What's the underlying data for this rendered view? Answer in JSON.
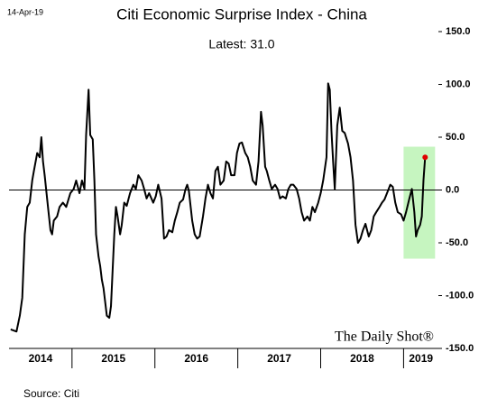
{
  "chart_data": {
    "type": "line",
    "title": "Citi Economic Surprise Index - China",
    "subtitle": "Latest:  31.0",
    "date": "14-Apr-19",
    "source": "Source: Citi",
    "watermark": "The Daily Shot®",
    "color": "#000000",
    "marker_color": "#e00000",
    "highlight": {
      "xlim": [
        2019.0,
        2019.38
      ],
      "ylim": [
        -65,
        41
      ],
      "color": "#c6f5c0"
    },
    "xlim": [
      2014.24,
      2019.42
    ],
    "xticks": [
      {
        "value": 2014,
        "label": "2014"
      },
      {
        "value": 2015,
        "label": "2015"
      },
      {
        "value": 2016,
        "label": "2016"
      },
      {
        "value": 2017,
        "label": "2017"
      },
      {
        "value": 2018,
        "label": "2018"
      },
      {
        "value": 2019,
        "label": "2019"
      }
    ],
    "ylim": [
      -150,
      150
    ],
    "yticks": [
      {
        "value": -150,
        "label": "-150.0"
      },
      {
        "value": -100,
        "label": "-100.0"
      },
      {
        "value": -50,
        "label": "-50.0"
      },
      {
        "value": 0,
        "label": "0.0"
      },
      {
        "value": 50,
        "label": "50.0"
      },
      {
        "value": 100,
        "label": "100.0"
      },
      {
        "value": 150,
        "label": "150.0"
      }
    ],
    "x": [
      2014.26,
      2014.33,
      2014.37,
      2014.4,
      2014.43,
      2014.46,
      2014.49,
      2014.52,
      2014.54,
      2014.58,
      2014.61,
      2014.63,
      2014.65,
      2014.67,
      2014.71,
      2014.74,
      2014.76,
      2014.78,
      2014.82,
      2014.85,
      2014.89,
      2014.93,
      2014.98,
      2015.02,
      2015.05,
      2015.09,
      2015.12,
      2015.15,
      2015.17,
      2015.2,
      2015.22,
      2015.25,
      2015.27,
      2015.29,
      2015.32,
      2015.34,
      2015.36,
      2015.38,
      2015.4,
      2015.42,
      2015.45,
      2015.47,
      2015.49,
      2015.51,
      2015.53,
      2015.55,
      2015.58,
      2015.6,
      2015.63,
      2015.66,
      2015.7,
      2015.74,
      2015.77,
      2015.8,
      2015.84,
      2015.87,
      2015.9,
      2015.93,
      2015.98,
      2016.01,
      2016.04,
      2016.08,
      2016.11,
      2016.14,
      2016.17,
      2016.21,
      2016.24,
      2016.27,
      2016.3,
      2016.34,
      2016.37,
      2016.39,
      2016.41,
      2016.45,
      2016.48,
      2016.51,
      2016.54,
      2016.58,
      2016.61,
      2016.64,
      2016.67,
      2016.7,
      2016.73,
      2016.76,
      2016.79,
      2016.83,
      2016.86,
      2016.89,
      2016.92,
      2016.96,
      2016.99,
      2017.02,
      2017.05,
      2017.09,
      2017.12,
      2017.15,
      2017.18,
      2017.22,
      2017.25,
      2017.28,
      2017.3,
      2017.33,
      2017.35,
      2017.38,
      2017.41,
      2017.45,
      2017.48,
      2017.51,
      2017.54,
      2017.58,
      2017.61,
      2017.64,
      2017.67,
      2017.71,
      2017.74,
      2017.77,
      2017.8,
      2017.84,
      2017.87,
      2017.9,
      2017.93,
      2017.97,
      2018.0,
      2018.03,
      2018.07,
      2018.09,
      2018.11,
      2018.13,
      2018.15,
      2018.17,
      2018.2,
      2018.23,
      2018.26,
      2018.29,
      2018.33,
      2018.36,
      2018.39,
      2018.42,
      2018.45,
      2018.48,
      2018.51,
      2018.54,
      2018.58,
      2018.61,
      2018.64,
      2018.67,
      2018.71,
      2018.74,
      2018.77,
      2018.8,
      2018.84,
      2018.87,
      2018.9,
      2018.93,
      2018.97,
      2019.0,
      2019.03,
      2019.07,
      2019.1,
      2019.13,
      2019.15,
      2019.17,
      2019.2,
      2019.22,
      2019.24,
      2019.26
    ],
    "values": [
      -132,
      -134,
      -119,
      -102,
      -42,
      -16,
      -12,
      9,
      18,
      35,
      31,
      50,
      27,
      14,
      -16,
      -38,
      -42,
      -29,
      -25,
      -16,
      -12,
      -16,
      -3,
      1,
      9,
      -3,
      9,
      1,
      52,
      95,
      52,
      48,
      9,
      -42,
      -63,
      -72,
      -85,
      -93,
      -106,
      -119,
      -121,
      -110,
      -76,
      -42,
      -16,
      -25,
      -42,
      -33,
      -12,
      -15,
      -3,
      5,
      1,
      14,
      9,
      1,
      -8,
      -3,
      -12,
      -6,
      5,
      -8,
      -46,
      -44,
      -38,
      -40,
      -29,
      -21,
      -12,
      -9,
      1,
      5,
      -1,
      -29,
      -42,
      -46,
      -44,
      -25,
      -8,
      5,
      -3,
      -8,
      18,
      22,
      5,
      9,
      27,
      25,
      14,
      14,
      35,
      44,
      45,
      35,
      31,
      22,
      9,
      5,
      27,
      74,
      61,
      22,
      18,
      9,
      1,
      5,
      1,
      -8,
      -6,
      -8,
      1,
      5,
      5,
      1,
      -8,
      -21,
      -29,
      -25,
      -29,
      -16,
      -21,
      -12,
      -3,
      9,
      31,
      101,
      95,
      56,
      27,
      1,
      61,
      78,
      56,
      54,
      44,
      31,
      9,
      -33,
      -50,
      -46,
      -38,
      -32,
      -44,
      -38,
      -25,
      -21,
      -16,
      -12,
      -9,
      -3,
      5,
      3,
      -12,
      -21,
      -23,
      -29,
      -21,
      -8,
      1,
      -21,
      -44,
      -38,
      -33,
      -25,
      9,
      31
    ]
  }
}
